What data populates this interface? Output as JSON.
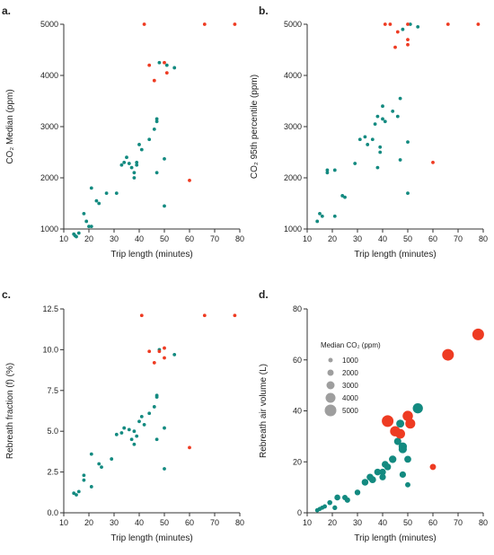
{
  "colors": {
    "teal": "#138a80",
    "red": "#ee3b22",
    "legend_grey": "#9e9e9e",
    "axis": "#333333"
  },
  "chart_data": [
    {
      "type": "scatter",
      "panel": "a.",
      "xlabel": "Trip length (minutes)",
      "ylabel": "CO₂ Median (ppm)",
      "xlim": [
        10,
        80
      ],
      "ylim": [
        1000,
        5000
      ],
      "xticks": [
        "10",
        "20",
        "30",
        "40",
        "50",
        "60",
        "70",
        "80"
      ],
      "yticks": [
        "1000",
        "2000",
        "3000",
        "4000",
        "5000"
      ],
      "series": [
        {
          "color": "teal",
          "points": [
            [
              14,
              900
            ],
            [
              14.5,
              870
            ],
            [
              15,
              850
            ],
            [
              16,
              920
            ],
            [
              18,
              1300
            ],
            [
              19,
              1150
            ],
            [
              20,
              1050
            ],
            [
              21,
              1050
            ],
            [
              21,
              1800
            ],
            [
              23,
              1550
            ],
            [
              24,
              1500
            ],
            [
              27,
              1700
            ],
            [
              31,
              1700
            ],
            [
              33,
              2250
            ],
            [
              34,
              2300
            ],
            [
              35,
              2400
            ],
            [
              36,
              2280
            ],
            [
              37,
              2200
            ],
            [
              38,
              2100
            ],
            [
              38,
              2000
            ],
            [
              39,
              2300
            ],
            [
              39,
              2250
            ],
            [
              40,
              2650
            ],
            [
              41,
              2550
            ],
            [
              44,
              2750
            ],
            [
              46,
              2950
            ],
            [
              47,
              3100
            ],
            [
              47,
              3150
            ],
            [
              47,
              2100
            ],
            [
              48,
              4250
            ],
            [
              50,
              2370
            ],
            [
              50,
              1450
            ],
            [
              51,
              4200
            ],
            [
              54,
              4150
            ]
          ]
        },
        {
          "color": "red",
          "points": [
            [
              42,
              5000
            ],
            [
              44,
              4200
            ],
            [
              46,
              3900
            ],
            [
              50,
              4250
            ],
            [
              51,
              4050
            ],
            [
              60,
              1950
            ],
            [
              66,
              5000
            ],
            [
              78,
              5000
            ]
          ]
        }
      ]
    },
    {
      "type": "scatter",
      "panel": "b.",
      "xlabel": "Trip length (minutes)",
      "ylabel": "CO₂ 95th percentile (ppm)",
      "xlim": [
        10,
        80
      ],
      "ylim": [
        1000,
        5000
      ],
      "xticks": [
        "10",
        "20",
        "30",
        "40",
        "50",
        "60",
        "70",
        "80"
      ],
      "yticks": [
        "1000",
        "2000",
        "3000",
        "4000",
        "5000"
      ],
      "series": [
        {
          "color": "teal",
          "points": [
            [
              14,
              1150
            ],
            [
              15,
              1300
            ],
            [
              16,
              1250
            ],
            [
              18,
              2100
            ],
            [
              18,
              2150
            ],
            [
              21,
              1250
            ],
            [
              21,
              2150
            ],
            [
              24,
              1650
            ],
            [
              25,
              1620
            ],
            [
              29,
              2280
            ],
            [
              31,
              2750
            ],
            [
              33,
              2800
            ],
            [
              34,
              2650
            ],
            [
              36,
              2750
            ],
            [
              37,
              3050
            ],
            [
              38,
              3200
            ],
            [
              38,
              2200
            ],
            [
              39,
              2600
            ],
            [
              39,
              2500
            ],
            [
              40,
              3150
            ],
            [
              40,
              3400
            ],
            [
              41,
              3100
            ],
            [
              44,
              3300
            ],
            [
              46,
              3200
            ],
            [
              47,
              3550
            ],
            [
              47,
              2350
            ],
            [
              48,
              4900
            ],
            [
              50,
              2700
            ],
            [
              50,
              1700
            ],
            [
              51,
              5000
            ],
            [
              54,
              4950
            ]
          ]
        },
        {
          "color": "red",
          "points": [
            [
              41,
              5000
            ],
            [
              43,
              5000
            ],
            [
              45,
              4550
            ],
            [
              46,
              4850
            ],
            [
              50,
              5000
            ],
            [
              50,
              4700
            ],
            [
              50,
              4600
            ],
            [
              60,
              2300
            ],
            [
              66,
              5000
            ],
            [
              78,
              5000
            ]
          ]
        }
      ]
    },
    {
      "type": "scatter",
      "panel": "c.",
      "xlabel": "Trip length (minutes)",
      "ylabel": "Rebreath fraction (f) (%)",
      "xlim": [
        10,
        80
      ],
      "ylim": [
        0,
        12.5
      ],
      "xticks": [
        "10",
        "20",
        "30",
        "40",
        "50",
        "60",
        "70",
        "80"
      ],
      "yticks": [
        "0.0",
        "2.5",
        "5.0",
        "7.5",
        "10.0",
        "12.5"
      ],
      "series": [
        {
          "color": "teal",
          "points": [
            [
              14,
              1.2
            ],
            [
              15,
              1.1
            ],
            [
              16,
              1.3
            ],
            [
              18,
              2.0
            ],
            [
              18,
              2.3
            ],
            [
              21,
              1.6
            ],
            [
              21,
              3.6
            ],
            [
              24,
              3.0
            ],
            [
              25,
              2.8
            ],
            [
              29,
              3.3
            ],
            [
              31,
              4.8
            ],
            [
              33,
              4.9
            ],
            [
              34,
              5.2
            ],
            [
              36,
              5.1
            ],
            [
              37,
              4.5
            ],
            [
              38,
              4.2
            ],
            [
              38,
              5.0
            ],
            [
              39,
              4.7
            ],
            [
              40,
              5.6
            ],
            [
              41,
              5.9
            ],
            [
              42,
              5.4
            ],
            [
              44,
              6.1
            ],
            [
              46,
              6.5
            ],
            [
              47,
              7.1
            ],
            [
              47,
              7.2
            ],
            [
              47,
              4.5
            ],
            [
              48,
              10.0
            ],
            [
              50,
              5.2
            ],
            [
              50,
              2.7
            ],
            [
              54,
              9.7
            ]
          ]
        },
        {
          "color": "red",
          "points": [
            [
              41,
              12.1
            ],
            [
              44,
              9.9
            ],
            [
              46,
              9.2
            ],
            [
              48,
              9.9
            ],
            [
              50,
              10.1
            ],
            [
              50,
              9.5
            ],
            [
              60,
              4.0
            ],
            [
              66,
              12.1
            ],
            [
              78,
              12.1
            ]
          ]
        }
      ]
    },
    {
      "type": "scatter",
      "panel": "d.",
      "xlabel": "Trip length (minutes)",
      "ylabel": "Rebreath air volume (L)",
      "xlim": [
        10,
        80
      ],
      "ylim": [
        0,
        80
      ],
      "xticks": [
        "10",
        "20",
        "30",
        "40",
        "50",
        "60",
        "70",
        "80"
      ],
      "yticks": [
        "0",
        "20",
        "40",
        "60",
        "80"
      ],
      "legend": {
        "title": "Median CO₂ (ppm)",
        "entries": [
          {
            "label": "1000",
            "value": 1000
          },
          {
            "label": "2000",
            "value": 2000
          },
          {
            "label": "3000",
            "value": 3000
          },
          {
            "label": "4000",
            "value": 4000
          },
          {
            "label": "5000",
            "value": 5000
          }
        ]
      },
      "series": [
        {
          "color": "teal",
          "points": [
            [
              14,
              1,
              900
            ],
            [
              15,
              1.5,
              870
            ],
            [
              16,
              2,
              850
            ],
            [
              17,
              2.5,
              920
            ],
            [
              19,
              4,
              1300
            ],
            [
              21,
              2,
              1150
            ],
            [
              22,
              6,
              1800
            ],
            [
              25,
              6,
              1500
            ],
            [
              26,
              5,
              1550
            ],
            [
              30,
              8,
              1700
            ],
            [
              33,
              12,
              2250
            ],
            [
              35,
              14,
              2300
            ],
            [
              36,
              13,
              2400
            ],
            [
              38,
              16,
              2280
            ],
            [
              40,
              16,
              2200
            ],
            [
              40,
              14,
              2100
            ],
            [
              41,
              19,
              2300
            ],
            [
              42,
              18,
              2250
            ],
            [
              44,
              21,
              2650
            ],
            [
              46,
              28,
              2550
            ],
            [
              47,
              35,
              2950
            ],
            [
              48,
              25,
              3100
            ],
            [
              48,
              26,
              3150
            ],
            [
              48,
              15,
              2100
            ],
            [
              50,
              21,
              2370
            ],
            [
              50,
              11,
              1450
            ],
            [
              54,
              41,
              4150
            ]
          ]
        },
        {
          "color": "red",
          "points": [
            [
              42,
              36,
              5000
            ],
            [
              45,
              32,
              4200
            ],
            [
              47,
              31,
              3900
            ],
            [
              50,
              38,
              4250
            ],
            [
              51,
              35,
              4050
            ],
            [
              60,
              18,
              1950
            ],
            [
              66,
              62,
              5000
            ],
            [
              78,
              70,
              5000
            ]
          ]
        }
      ]
    }
  ]
}
